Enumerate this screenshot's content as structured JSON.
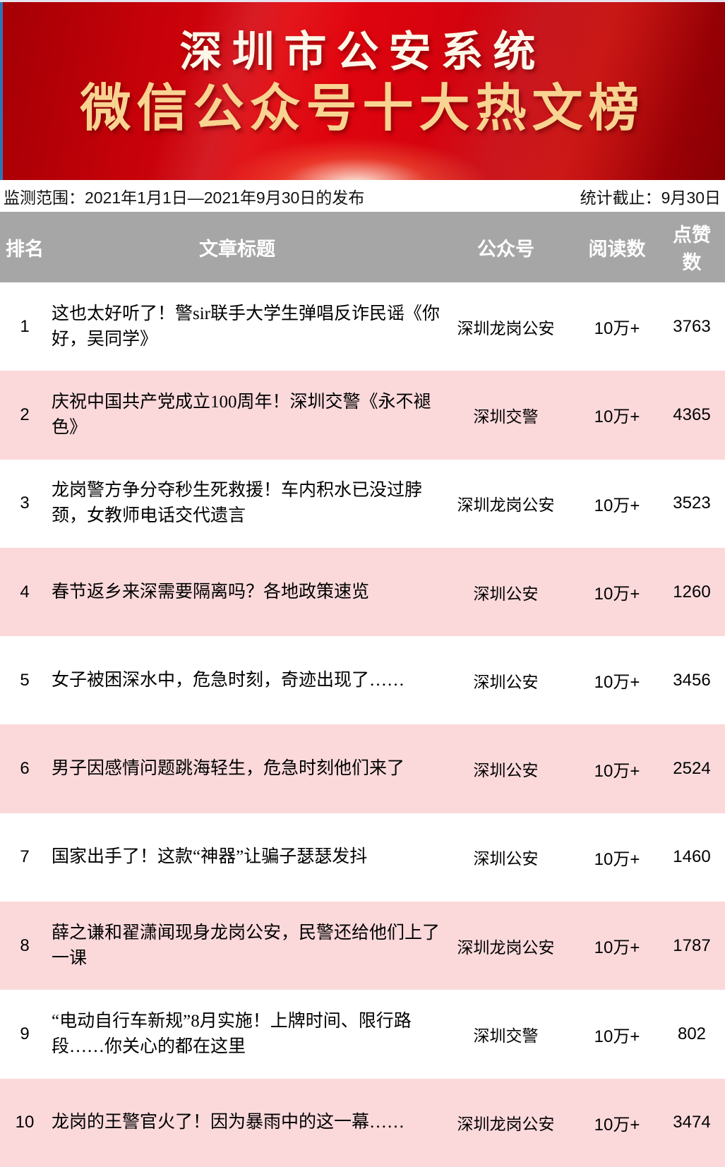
{
  "banner": {
    "title_line1": "深圳市公安系统",
    "title_line2": "微信公众号十大热文榜"
  },
  "meta": {
    "monitor_range": "监测范围：2021年1月1日—2021年9月30日的发布",
    "stats_deadline": "统计截止：9月30日"
  },
  "table": {
    "headers": {
      "rank": "排名",
      "title": "文章标题",
      "account": "公众号",
      "reads": "阅读数",
      "likes": "点赞数"
    },
    "rows": [
      {
        "rank": "1",
        "title": "这也太好听了！警sir联手大学生弹唱反诈民谣《你好，吴同学》",
        "account": "深圳龙岗公安",
        "reads": "10万+",
        "likes": "3763"
      },
      {
        "rank": "2",
        "title": "庆祝中国共产党成立100周年！深圳交警《永不褪色》",
        "account": "深圳交警",
        "reads": "10万+",
        "likes": "4365"
      },
      {
        "rank": "3",
        "title": "龙岗警方争分夺秒生死救援！车内积水已没过脖颈，女教师电话交代遗言",
        "account": "深圳龙岗公安",
        "reads": "10万+",
        "likes": "3523"
      },
      {
        "rank": "4",
        "title": "春节返乡来深需要隔离吗？各地政策速览",
        "account": "深圳公安",
        "reads": "10万+",
        "likes": "1260"
      },
      {
        "rank": "5",
        "title": "女子被困深水中，危急时刻，奇迹出现了……",
        "account": "深圳公安",
        "reads": "10万+",
        "likes": "3456"
      },
      {
        "rank": "6",
        "title": "男子因感情问题跳海轻生，危急时刻他们来了",
        "account": "深圳公安",
        "reads": "10万+",
        "likes": "2524"
      },
      {
        "rank": "7",
        "title": "国家出手了！这款“神器”让骗子瑟瑟发抖",
        "account": "深圳公安",
        "reads": "10万+",
        "likes": "1460"
      },
      {
        "rank": "8",
        "title": "薛之谦和翟潇闻现身龙岗公安，民警还给他们上了一课",
        "account": "深圳龙岗公安",
        "reads": "10万+",
        "likes": "1787"
      },
      {
        "rank": "9",
        "title": "“电动自行车新规”8月实施！上牌时间、限行路段……你关心的都在这里",
        "account": "深圳交警",
        "reads": "10万+",
        "likes": "802"
      },
      {
        "rank": "10",
        "title": "龙岗的王警官火了！因为暴雨中的这一幕……",
        "account": "深圳龙岗公安",
        "reads": "10万+",
        "likes": "3474"
      }
    ]
  },
  "colors": {
    "banner_red": "#d5030e",
    "banner_gold": "#f8d391",
    "banner_title_white": "#fdf7ea",
    "header_gray": "#a6a6a6",
    "row_pink": "#fbd9db",
    "left_stripe_blue": "#2e74b8"
  }
}
